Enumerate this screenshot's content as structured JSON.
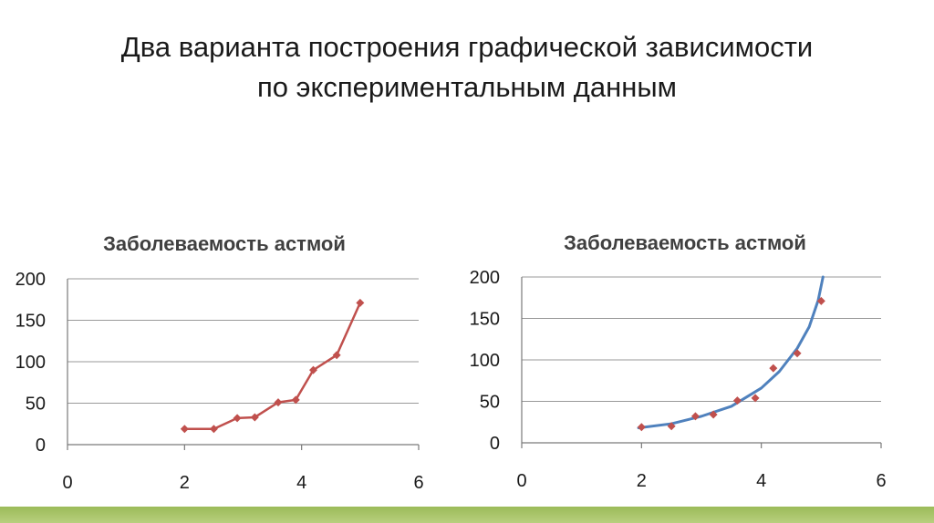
{
  "slide": {
    "title_line1": "Два варианта построения графической зависимости",
    "title_line2": "по экспериментальным данным"
  },
  "colors": {
    "series_marker": "#c0504d",
    "series_line": "#c0504d",
    "trendline": "#4f81bd",
    "bottom_bar": "#9bbb59"
  },
  "chart_data": [
    {
      "type": "line",
      "title": "Заболеваемость астмой",
      "x": [
        2,
        2.5,
        2.9,
        3.2,
        3.6,
        3.9,
        4.2,
        4.6,
        5
      ],
      "y": [
        19,
        19,
        32,
        33,
        51,
        54,
        90,
        108,
        171
      ],
      "xlim": [
        0,
        6
      ],
      "ylim": [
        0,
        200
      ],
      "xticks": [
        0,
        2,
        4,
        6
      ],
      "yticks": [
        0,
        50,
        100,
        150,
        200
      ],
      "grid": "horizontal",
      "legend": "none"
    },
    {
      "type": "scatter",
      "title": "Заболеваемость астмой",
      "x": [
        2,
        2.5,
        2.9,
        3.2,
        3.6,
        3.9,
        4.2,
        4.6,
        5
      ],
      "y": [
        19,
        20,
        32,
        34,
        51,
        54,
        90,
        108,
        171
      ],
      "trendline": {
        "x": [
          1.95,
          2.5,
          3.0,
          3.5,
          4.0,
          4.3,
          4.6,
          4.8,
          4.95,
          5.03
        ],
        "y": [
          18,
          23,
          32,
          44,
          66,
          86,
          114,
          140,
          172,
          200
        ]
      },
      "xlim": [
        0,
        6
      ],
      "ylim": [
        0,
        200
      ],
      "xticks": [
        0,
        2,
        4,
        6
      ],
      "yticks": [
        0,
        50,
        100,
        150,
        200
      ],
      "grid": "horizontal",
      "legend": "none"
    }
  ]
}
